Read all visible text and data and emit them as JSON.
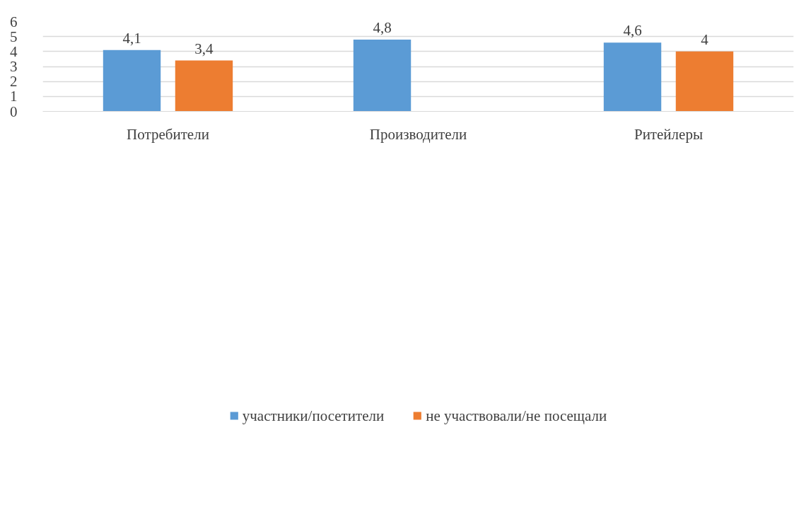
{
  "chart_data": {
    "type": "bar",
    "categories": [
      "Потребители",
      "Производители",
      "Ритейлеры"
    ],
    "series": [
      {
        "name": "участники/посетители",
        "color": "#5b9bd5",
        "values": [
          4.1,
          4.8,
          4.6
        ],
        "value_labels": [
          "4,1",
          "4,8",
          "4,6"
        ]
      },
      {
        "name": "не участвовали/не посещали",
        "color": "#ed7d31",
        "values": [
          3.4,
          null,
          4.0
        ],
        "value_labels": [
          "3,4",
          null,
          "4"
        ]
      }
    ],
    "ylim": [
      0,
      6
    ],
    "yticks": [
      0,
      1,
      2,
      3,
      4,
      5,
      6
    ],
    "grid": "y",
    "legend": "bottom"
  }
}
